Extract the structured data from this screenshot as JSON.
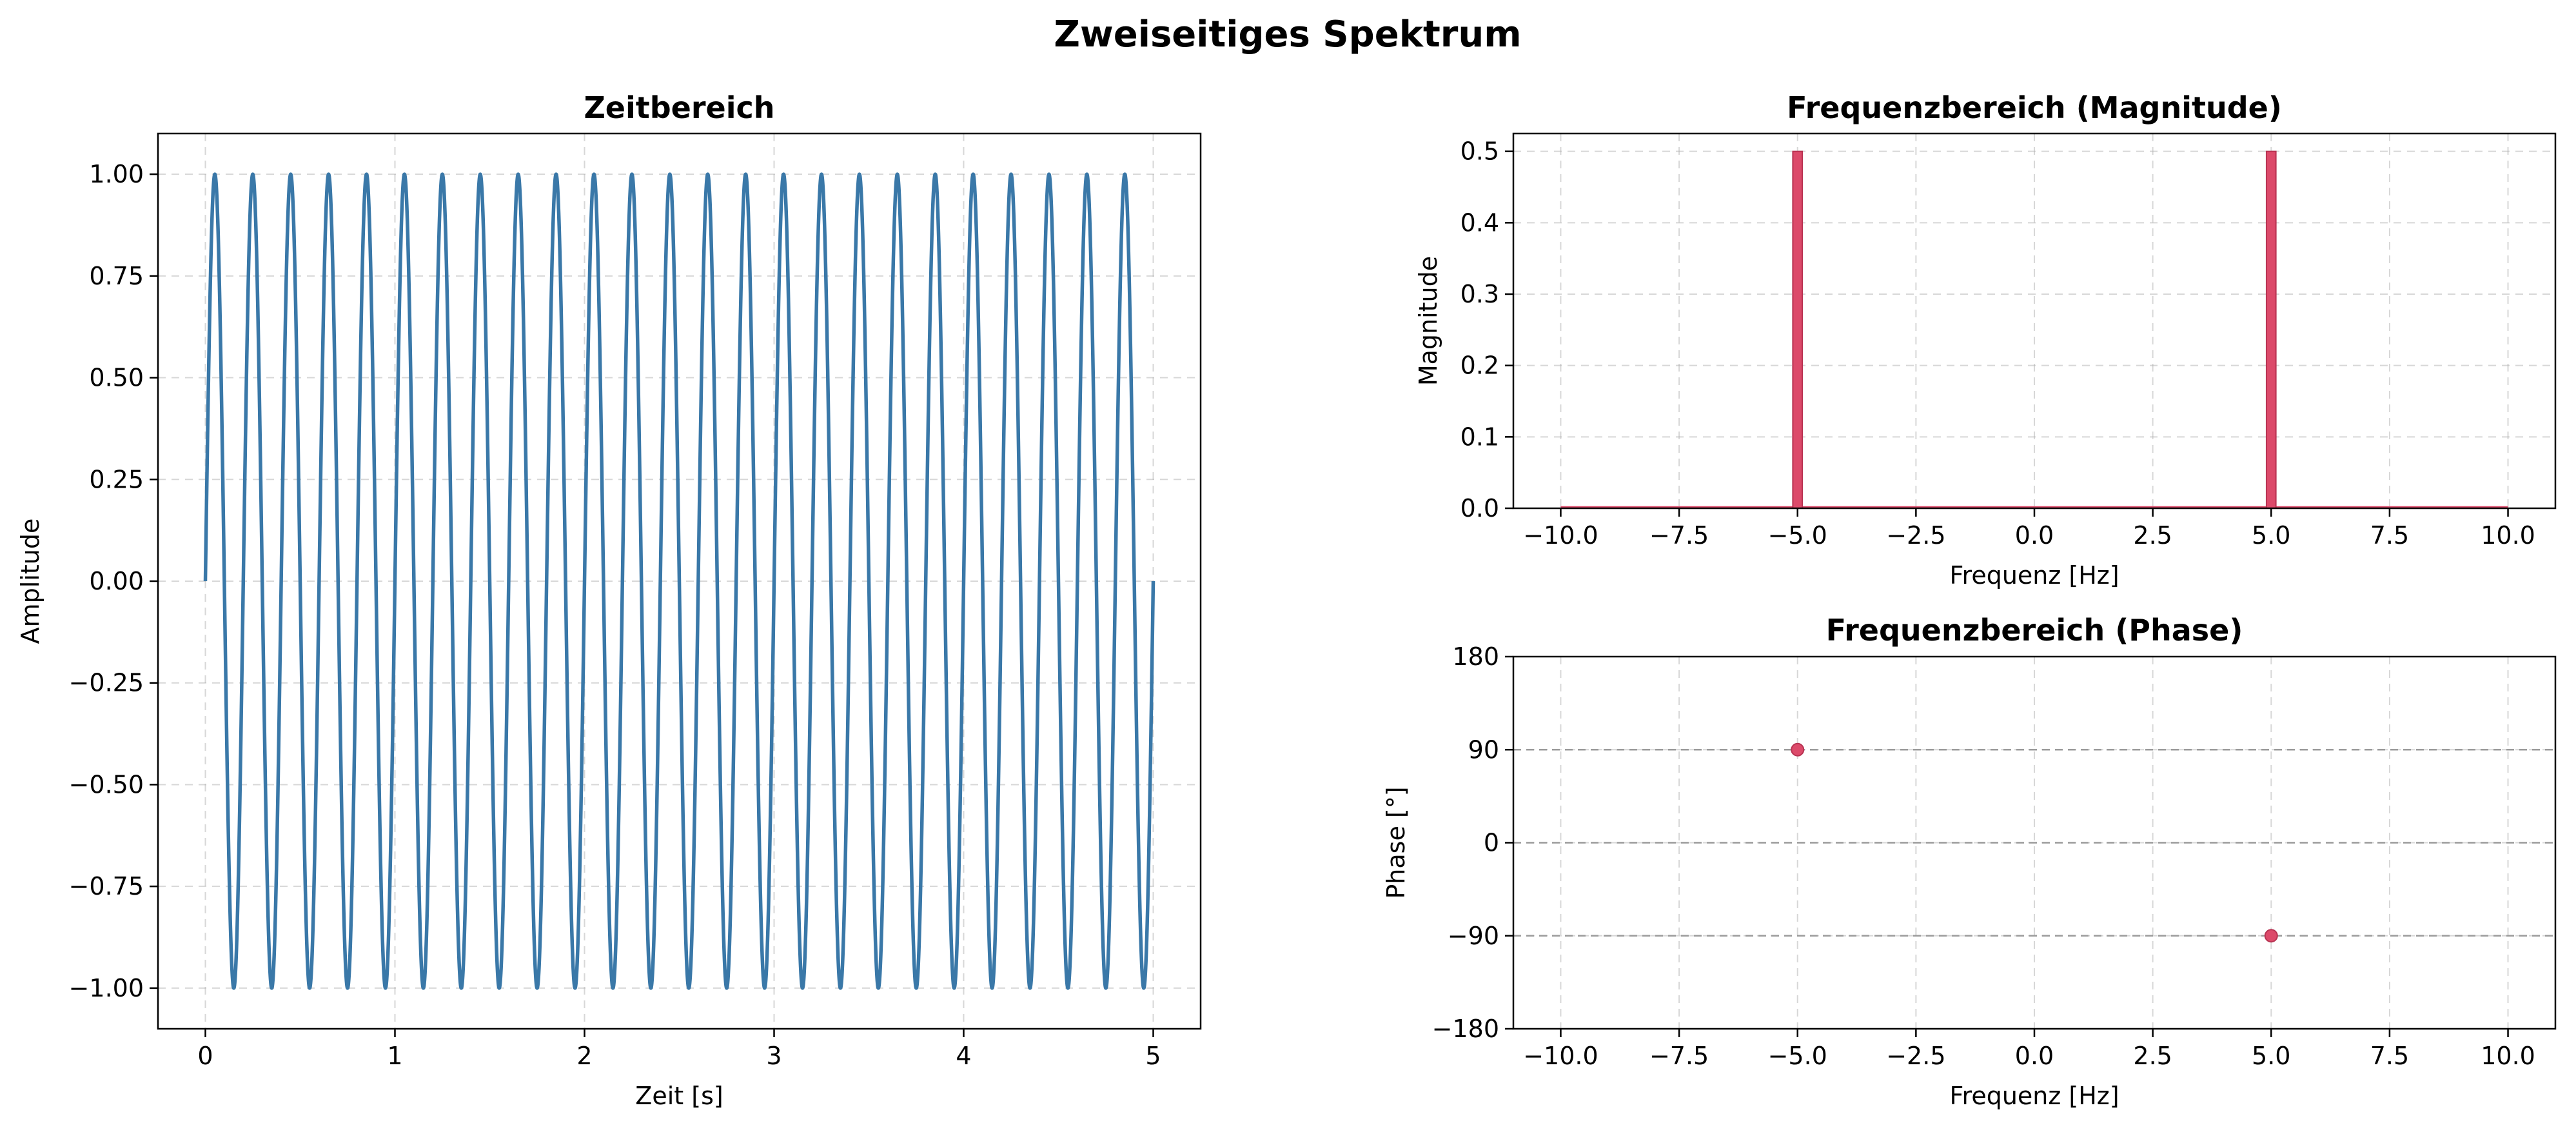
{
  "suptitle": "Zweiseitiges Spektrum",
  "chart_data": [
    {
      "id": "time",
      "type": "line",
      "title": "Zeitbereich",
      "xlabel": "Zeit [s]",
      "ylabel": "Amplitude",
      "xlim": [
        -0.25,
        5.25
      ],
      "ylim": [
        -1.1,
        1.1
      ],
      "xticks": [
        0,
        1,
        2,
        3,
        4,
        5
      ],
      "xtick_labels": [
        "0",
        "1",
        "2",
        "3",
        "4",
        "5"
      ],
      "yticks": [
        -1.0,
        -0.75,
        -0.5,
        -0.25,
        0.0,
        0.25,
        0.5,
        0.75,
        1.0
      ],
      "ytick_labels": [
        "−1.00",
        "−0.75",
        "−0.50",
        "−0.25",
        "0.00",
        "0.25",
        "0.50",
        "0.75",
        "1.00"
      ],
      "grid": true,
      "series": [
        {
          "function": "sin(2*pi*5*t)",
          "frequency_hz": 5,
          "amplitude": 1.0,
          "t_start": 0,
          "t_end": 5,
          "color": "#3a78a8"
        }
      ]
    },
    {
      "id": "magnitude",
      "type": "bar",
      "title": "Frequenzbereich (Magnitude)",
      "xlabel": "Frequenz [Hz]",
      "ylabel": "Magnitude",
      "xlim": [
        -11.0,
        11.0
      ],
      "ylim": [
        0.0,
        0.525
      ],
      "xticks": [
        -10,
        -7.5,
        -5,
        -2.5,
        0,
        2.5,
        5,
        7.5,
        10
      ],
      "xtick_labels": [
        "−10.0",
        "−7.5",
        "−5.0",
        "−2.5",
        "0.0",
        "2.5",
        "5.0",
        "7.5",
        "10.0"
      ],
      "yticks": [
        0.0,
        0.1,
        0.2,
        0.3,
        0.4,
        0.5
      ],
      "ytick_labels": [
        "0.0",
        "0.1",
        "0.2",
        "0.3",
        "0.4",
        "0.5"
      ],
      "grid": true,
      "baseline_range": [
        -10,
        10
      ],
      "bars": [
        {
          "x": -5.0,
          "value": 0.5
        },
        {
          "x": 5.0,
          "value": 0.5
        }
      ],
      "bar_width": 0.2,
      "color": "#dc4a6a"
    },
    {
      "id": "phase",
      "type": "scatter",
      "title": "Frequenzbereich (Phase)",
      "xlabel": "Frequenz [Hz]",
      "ylabel": "Phase [°]",
      "xlim": [
        -11.0,
        11.0
      ],
      "ylim": [
        -180,
        180
      ],
      "xticks": [
        -10,
        -7.5,
        -5,
        -2.5,
        0,
        2.5,
        5,
        7.5,
        10
      ],
      "xtick_labels": [
        "−10.0",
        "−7.5",
        "−5.0",
        "−2.5",
        "0.0",
        "2.5",
        "5.0",
        "7.5",
        "10.0"
      ],
      "yticks": [
        -180,
        -90,
        0,
        90,
        180
      ],
      "ytick_labels": [
        "−180",
        "−90",
        "0",
        "90",
        "180"
      ],
      "grid": true,
      "reference_lines": [
        90,
        0,
        -90
      ],
      "points": [
        {
          "x": -5.0,
          "y": 90
        },
        {
          "x": 5.0,
          "y": -90
        }
      ],
      "color": "#dc4a6a"
    }
  ]
}
